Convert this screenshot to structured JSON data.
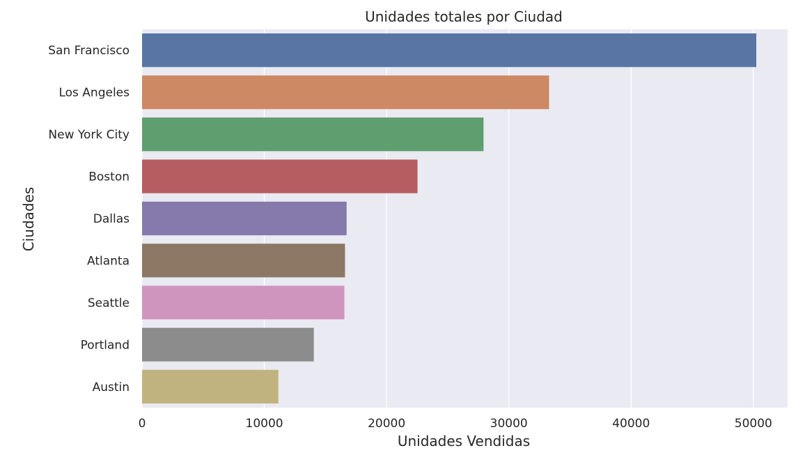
{
  "chart_data": {
    "type": "bar",
    "orientation": "horizontal",
    "title": "Unidades totales por Ciudad",
    "xlabel": "Unidades Vendidas",
    "ylabel": "Ciudades",
    "categories": [
      "San Francisco",
      "Los Angeles",
      "New York City",
      "Boston",
      "Dallas",
      "Atlanta",
      "Seattle",
      "Portland",
      "Austin"
    ],
    "values": [
      50240,
      33290,
      27930,
      22530,
      16730,
      16600,
      16550,
      14050,
      11150
    ],
    "colors": [
      "#5875a4",
      "#cc8963",
      "#5f9e6e",
      "#b55d60",
      "#857aab",
      "#8d7866",
      "#d095bf",
      "#8c8c8c",
      "#c1b37f"
    ],
    "xlim": [
      0,
      52800
    ],
    "xticks": [
      0,
      10000,
      20000,
      30000,
      40000,
      50000
    ],
    "grid": true,
    "background": "#eaeaf2"
  }
}
